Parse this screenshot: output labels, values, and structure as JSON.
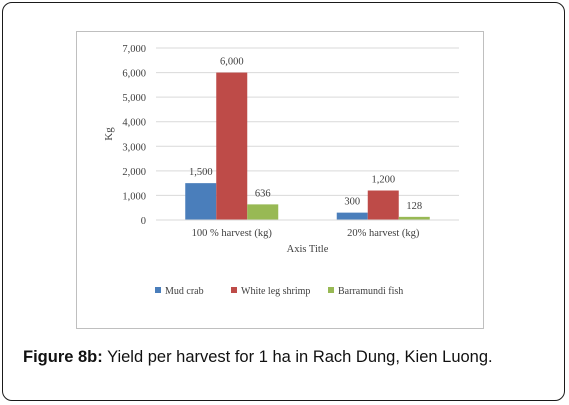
{
  "chart_data": {
    "type": "bar",
    "categories": [
      "100 % harvest (kg)",
      "20% harvest (kg)"
    ],
    "series": [
      {
        "name": "Mud crab",
        "values": [
          1500,
          300
        ],
        "labels": [
          "1,500",
          "300"
        ],
        "color": "#4a7ebb"
      },
      {
        "name": "White leg shrimp",
        "values": [
          6000,
          1200
        ],
        "labels": [
          "6,000",
          "1,200"
        ],
        "color": "#be4b48"
      },
      {
        "name": "Barramundi fish",
        "values": [
          636,
          128
        ],
        "labels": [
          "636",
          "128"
        ],
        "color": "#98b954"
      }
    ],
    "xlabel": "Axis Title",
    "ylabel": "Kg",
    "ylim": [
      0,
      7000
    ],
    "yticks": [
      0,
      1000,
      2000,
      3000,
      4000,
      5000,
      6000,
      7000
    ],
    "ytick_labels": [
      "0",
      "1,000",
      "2,000",
      "3,000",
      "4,000",
      "5,000",
      "6,000",
      "7,000"
    ],
    "grid": true,
    "legend": "bottom"
  },
  "caption": {
    "label": "Figure 8b:",
    "text": "Yield per harvest for 1 ha in Rach Dung, Kien Luong."
  }
}
